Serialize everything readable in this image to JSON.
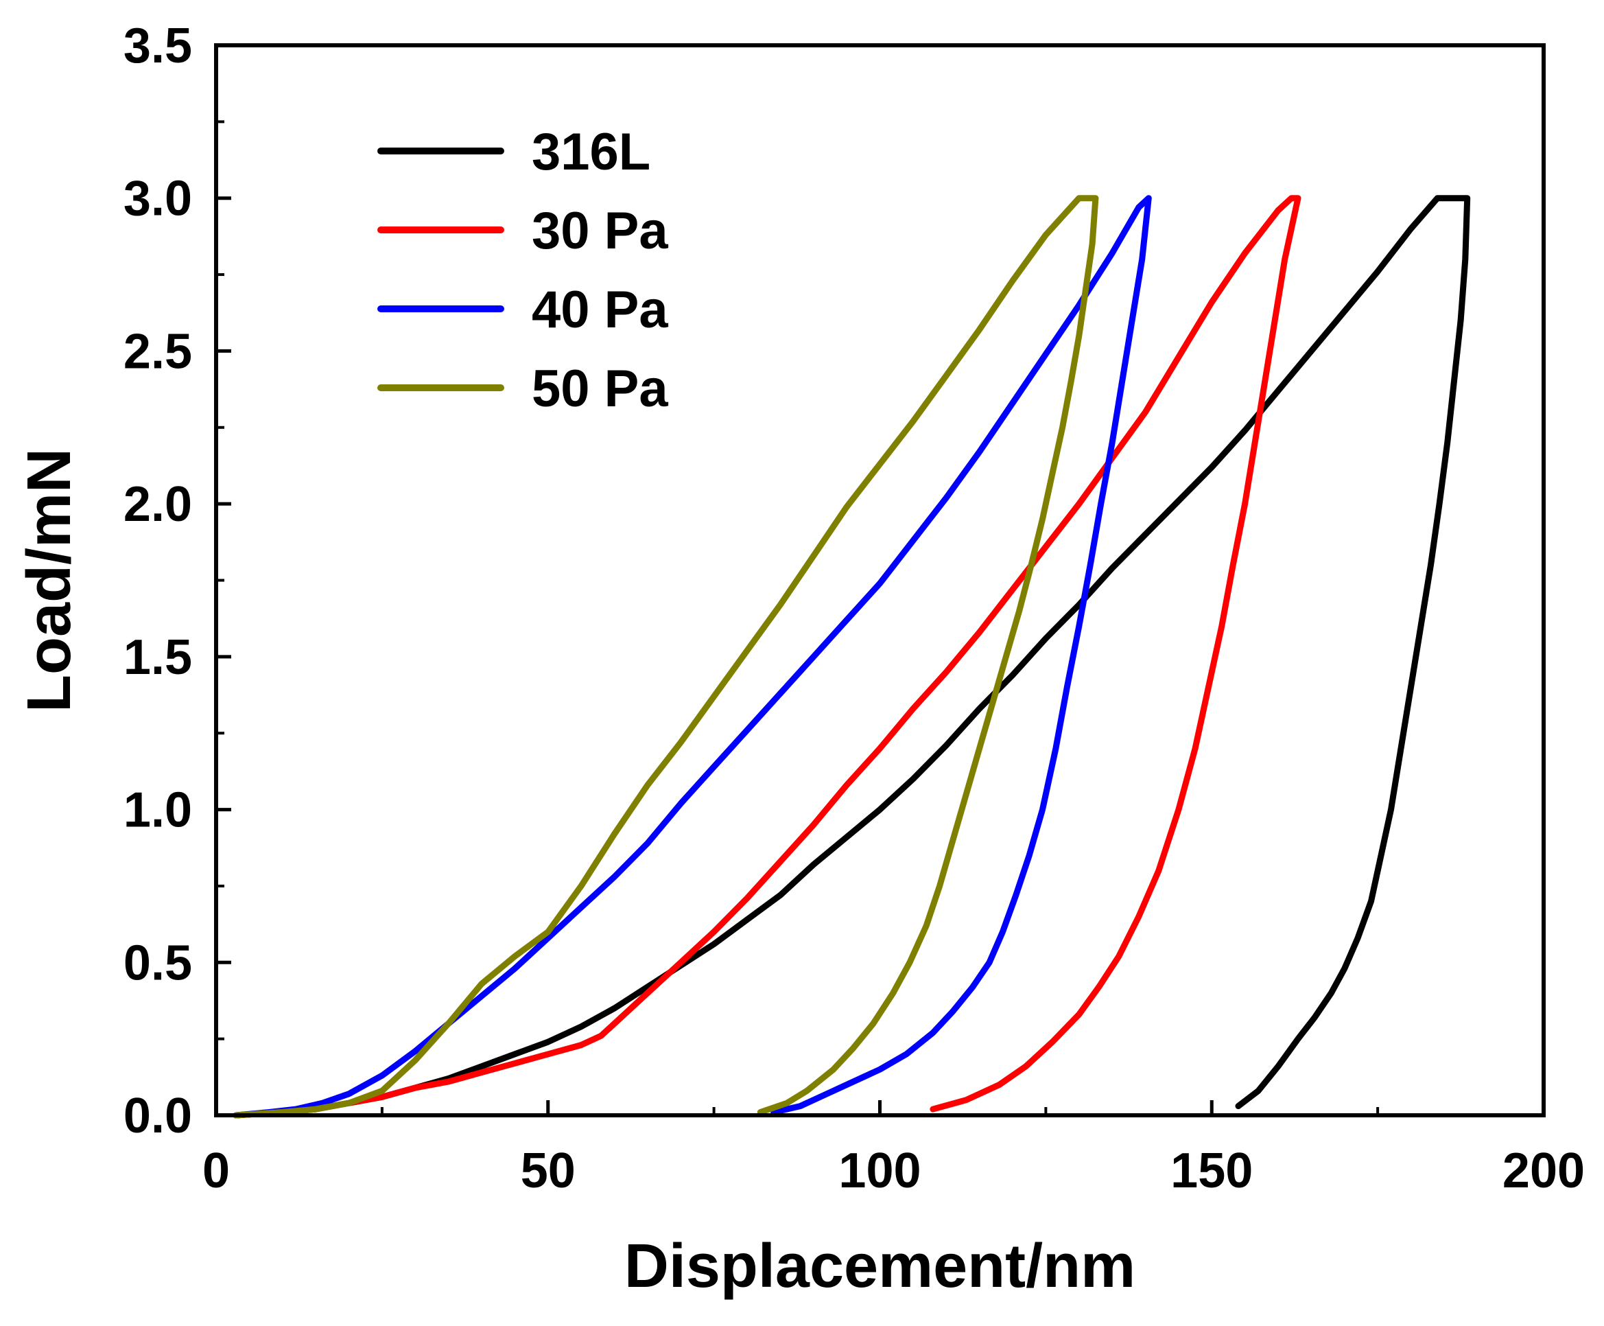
{
  "chart_data": {
    "type": "line",
    "title": "",
    "xlabel": "Displacement/nm",
    "ylabel": "Load/mN",
    "xlim": [
      0,
      200
    ],
    "ylim": [
      0,
      3.5
    ],
    "xticks": [
      "0",
      "50",
      "100",
      "150",
      "200"
    ],
    "yticks": [
      "0.0",
      "0.5",
      "1.0",
      "1.5",
      "2.0",
      "2.5",
      "3.0",
      "3.5"
    ],
    "grid": false,
    "legend_position": "top-left",
    "series": [
      {
        "name": "316L",
        "color": "#000000",
        "x": [
          3,
          10,
          15,
          20,
          25,
          30,
          35,
          40,
          45,
          50,
          55,
          60,
          65,
          70,
          75,
          80,
          85,
          90,
          95,
          100,
          105,
          110,
          115,
          120,
          125,
          130,
          135,
          140,
          145,
          150,
          155,
          160,
          165,
          170,
          175,
          180,
          184,
          188.5,
          188.2,
          187.5,
          186.5,
          185.5,
          184.3,
          183,
          181.5,
          180,
          178.5,
          177,
          175.5,
          174,
          172,
          170,
          168,
          165.5,
          163,
          160,
          157,
          154
        ],
        "y": [
          0,
          0.01,
          0.02,
          0.04,
          0.06,
          0.09,
          0.12,
          0.16,
          0.2,
          0.24,
          0.29,
          0.35,
          0.42,
          0.49,
          0.56,
          0.64,
          0.72,
          0.82,
          0.91,
          1.0,
          1.1,
          1.21,
          1.33,
          1.44,
          1.56,
          1.67,
          1.79,
          1.9,
          2.01,
          2.12,
          2.24,
          2.37,
          2.5,
          2.63,
          2.76,
          2.9,
          3.0,
          3.0,
          2.8,
          2.6,
          2.4,
          2.2,
          2.0,
          1.8,
          1.6,
          1.4,
          1.2,
          1.0,
          0.85,
          0.7,
          0.58,
          0.48,
          0.4,
          0.32,
          0.25,
          0.16,
          0.08,
          0.03
        ]
      },
      {
        "name": "30 Pa",
        "color": "#ff0000",
        "x": [
          3,
          10,
          15,
          20,
          25,
          30,
          35,
          40,
          45,
          50,
          55,
          58,
          60,
          65,
          70,
          75,
          80,
          85,
          90,
          95,
          100,
          105,
          110,
          115,
          120,
          125,
          130,
          135,
          140,
          145,
          150,
          155,
          160,
          162,
          163,
          161,
          159.5,
          158,
          156.5,
          155,
          153.2,
          151.5,
          149.5,
          147.5,
          145,
          142,
          139,
          136,
          133,
          130,
          126,
          122,
          118,
          113,
          108
        ],
        "y": [
          0,
          0.01,
          0.02,
          0.04,
          0.06,
          0.09,
          0.11,
          0.14,
          0.17,
          0.2,
          0.23,
          0.26,
          0.3,
          0.4,
          0.5,
          0.6,
          0.71,
          0.83,
          0.95,
          1.08,
          1.2,
          1.33,
          1.45,
          1.58,
          1.72,
          1.86,
          2.0,
          2.15,
          2.3,
          2.48,
          2.66,
          2.82,
          2.96,
          3.0,
          3.0,
          2.8,
          2.6,
          2.4,
          2.2,
          2.0,
          1.8,
          1.6,
          1.4,
          1.2,
          1.0,
          0.8,
          0.65,
          0.52,
          0.42,
          0.33,
          0.24,
          0.16,
          0.1,
          0.05,
          0.02
        ]
      },
      {
        "name": "40 Pa",
        "color": "#0000ff",
        "x": [
          3,
          8,
          12,
          16,
          20,
          25,
          30,
          35,
          40,
          45,
          50,
          55,
          60,
          65,
          70,
          75,
          80,
          85,
          90,
          95,
          100,
          105,
          110,
          115,
          120,
          125,
          130,
          135,
          139,
          140.5,
          139.5,
          138,
          136.5,
          135,
          133.3,
          131.7,
          130,
          128.2,
          126.5,
          124.5,
          122.5,
          120.5,
          118.5,
          116.5,
          114,
          111,
          108,
          104,
          100,
          96,
          92,
          88,
          84
        ],
        "y": [
          0,
          0.01,
          0.02,
          0.04,
          0.07,
          0.13,
          0.21,
          0.3,
          0.39,
          0.48,
          0.58,
          0.68,
          0.78,
          0.89,
          1.02,
          1.14,
          1.26,
          1.38,
          1.5,
          1.62,
          1.74,
          1.88,
          2.02,
          2.17,
          2.33,
          2.49,
          2.65,
          2.82,
          2.97,
          3.0,
          2.8,
          2.6,
          2.4,
          2.2,
          2.0,
          1.8,
          1.6,
          1.4,
          1.2,
          1.0,
          0.85,
          0.72,
          0.6,
          0.5,
          0.42,
          0.34,
          0.27,
          0.2,
          0.15,
          0.11,
          0.07,
          0.03,
          0.01
        ]
      },
      {
        "name": "50 Pa",
        "color": "#808000",
        "x": [
          3,
          10,
          15,
          20,
          25,
          30,
          35,
          40,
          45,
          50,
          55,
          60,
          65,
          70,
          75,
          80,
          85,
          90,
          95,
          100,
          105,
          110,
          115,
          120,
          125,
          130,
          132.5,
          132,
          131,
          130,
          128.8,
          127.5,
          126,
          124.5,
          122.8,
          121,
          119,
          117,
          115,
          113,
          111,
          109,
          107,
          104.5,
          102,
          99,
          96,
          93,
          89,
          86,
          82
        ],
        "y": [
          0,
          0.01,
          0.02,
          0.04,
          0.08,
          0.18,
          0.3,
          0.43,
          0.52,
          0.6,
          0.75,
          0.92,
          1.08,
          1.22,
          1.37,
          1.52,
          1.67,
          1.83,
          1.99,
          2.13,
          2.27,
          2.42,
          2.57,
          2.73,
          2.88,
          3.0,
          3.0,
          2.85,
          2.7,
          2.55,
          2.4,
          2.25,
          2.1,
          1.95,
          1.8,
          1.65,
          1.5,
          1.35,
          1.2,
          1.05,
          0.9,
          0.75,
          0.62,
          0.5,
          0.4,
          0.3,
          0.22,
          0.15,
          0.08,
          0.04,
          0.01
        ]
      }
    ]
  }
}
